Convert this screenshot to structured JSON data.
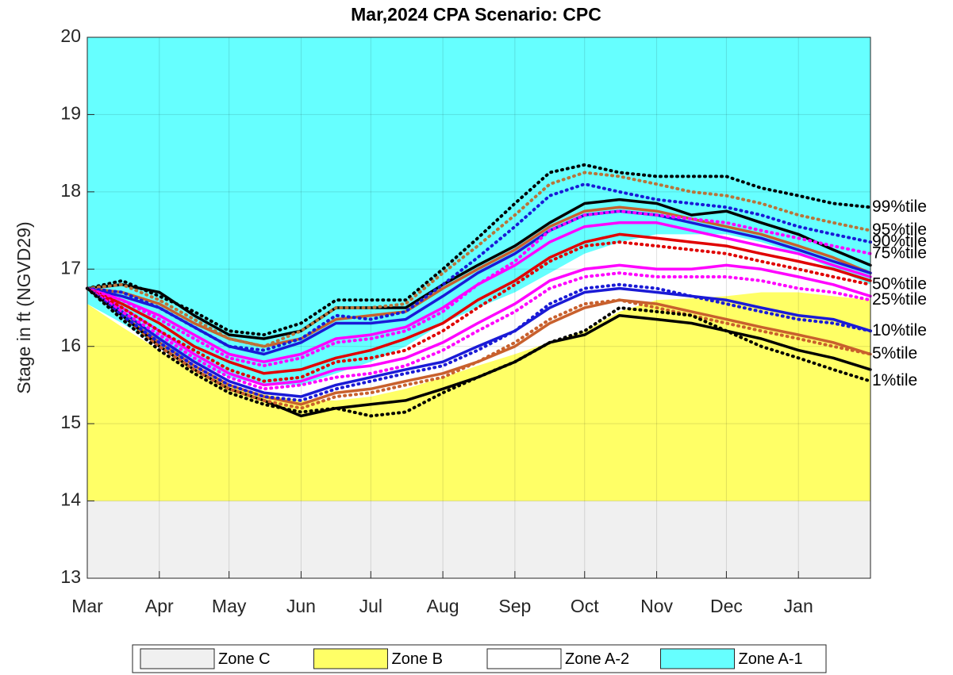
{
  "chart_data": {
    "type": "line",
    "title": "Mar,2024  CPA Scenario: CPC",
    "y_label": "Stage in ft (NGVD29)",
    "x": [
      0,
      15,
      31,
      46,
      61,
      76,
      92,
      107,
      122,
      137,
      153,
      168,
      184,
      199,
      214,
      229,
      245,
      260,
      275,
      290,
      306,
      321,
      337
    ],
    "xlim": [
      0,
      337
    ],
    "xticks": [
      {
        "value": 0,
        "label": "Mar"
      },
      {
        "value": 31,
        "label": "Apr"
      },
      {
        "value": 61,
        "label": "May"
      },
      {
        "value": 92,
        "label": "Jun"
      },
      {
        "value": 122,
        "label": "Jul"
      },
      {
        "value": 153,
        "label": "Aug"
      },
      {
        "value": 184,
        "label": "Sep"
      },
      {
        "value": 214,
        "label": "Oct"
      },
      {
        "value": 245,
        "label": "Nov"
      },
      {
        "value": 275,
        "label": "Dec"
      },
      {
        "value": 306,
        "label": "Jan"
      }
    ],
    "ylim": [
      13,
      20
    ],
    "yticks": [
      13,
      14,
      15,
      16,
      17,
      18,
      19,
      20
    ],
    "grid": true,
    "legend": "bottom",
    "zones": [
      {
        "name": "Zone C",
        "color": "#f0f0f0",
        "values": [
          14,
          14,
          14,
          14,
          14,
          14,
          14,
          14,
          14,
          14,
          14,
          14,
          14,
          14,
          14,
          14,
          14,
          14,
          14,
          14,
          14,
          14,
          14
        ]
      },
      {
        "name": "Zone B",
        "color": "#ffff66",
        "values": [
          16.55,
          16.25,
          15.95,
          15.7,
          15.5,
          15.38,
          15.3,
          15.3,
          15.35,
          15.45,
          15.6,
          15.75,
          15.9,
          16.05,
          16.2,
          16.45,
          16.6,
          16.62,
          16.65,
          16.7,
          16.7,
          16.65,
          16.6
        ]
      },
      {
        "name": "Zone A-2",
        "color": "#ffffff",
        "values": [
          16.55,
          16.3,
          16.0,
          15.8,
          15.6,
          15.5,
          15.5,
          15.65,
          15.8,
          16.0,
          16.3,
          16.5,
          16.7,
          16.95,
          17.2,
          17.35,
          17.45,
          17.45,
          17.45,
          17.35,
          17.2,
          17.0,
          16.8
        ]
      },
      {
        "name": "Zone A-1",
        "color": "#66ffff",
        "values": [
          20,
          20,
          20,
          20,
          20,
          20,
          20,
          20,
          20,
          20,
          20,
          20,
          20,
          20,
          20,
          20,
          20,
          20,
          20,
          20,
          20,
          20,
          20
        ]
      }
    ],
    "series": [
      {
        "color": "#000000",
        "style": "solid",
        "values": [
          16.75,
          16.8,
          16.7,
          16.4,
          16.15,
          16.1,
          16.2,
          16.5,
          16.5,
          16.5,
          16.8,
          17.05,
          17.3,
          17.6,
          17.85,
          17.9,
          17.85,
          17.7,
          17.75,
          17.6,
          17.45,
          17.25,
          17.05
        ]
      },
      {
        "color": "#c8602d",
        "style": "solid",
        "values": [
          16.75,
          16.7,
          16.55,
          16.3,
          16.1,
          16.0,
          16.1,
          16.35,
          16.4,
          16.45,
          16.75,
          17.0,
          17.25,
          17.55,
          17.75,
          17.8,
          17.75,
          17.65,
          17.55,
          17.45,
          17.3,
          17.15,
          16.95
        ]
      },
      {
        "color": "#1a1ad6",
        "style": "solid",
        "values": [
          16.75,
          16.65,
          16.5,
          16.25,
          16.0,
          15.9,
          16.05,
          16.3,
          16.3,
          16.35,
          16.65,
          16.95,
          17.2,
          17.5,
          17.7,
          17.75,
          17.7,
          17.6,
          17.5,
          17.4,
          17.25,
          17.1,
          16.95
        ]
      },
      {
        "color": "#ff00ff",
        "style": "solid",
        "values": [
          16.75,
          16.6,
          16.4,
          16.15,
          15.9,
          15.8,
          15.9,
          16.1,
          16.15,
          16.25,
          16.5,
          16.8,
          17.05,
          17.35,
          17.55,
          17.6,
          17.6,
          17.5,
          17.4,
          17.3,
          17.2,
          17.05,
          16.9
        ]
      },
      {
        "color": "#e00000",
        "style": "solid",
        "values": [
          16.75,
          16.55,
          16.3,
          16.0,
          15.8,
          15.65,
          15.7,
          15.85,
          15.95,
          16.1,
          16.3,
          16.6,
          16.85,
          17.15,
          17.35,
          17.45,
          17.4,
          17.35,
          17.3,
          17.2,
          17.1,
          17.0,
          16.85
        ]
      },
      {
        "color": "#ff00ff",
        "style": "solid",
        "values": [
          16.75,
          16.5,
          16.2,
          15.9,
          15.65,
          15.5,
          15.55,
          15.7,
          15.75,
          15.85,
          16.05,
          16.3,
          16.55,
          16.85,
          17.0,
          17.05,
          17.0,
          17.0,
          17.05,
          17.0,
          16.9,
          16.8,
          16.65
        ]
      },
      {
        "color": "#1a1ad6",
        "style": "solid",
        "values": [
          16.75,
          16.45,
          16.1,
          15.8,
          15.55,
          15.4,
          15.35,
          15.5,
          15.6,
          15.7,
          15.8,
          16.0,
          16.2,
          16.5,
          16.7,
          16.75,
          16.7,
          16.65,
          16.6,
          16.5,
          16.4,
          16.35,
          16.2
        ]
      },
      {
        "color": "#c8602d",
        "style": "solid",
        "values": [
          16.75,
          16.4,
          16.05,
          15.75,
          15.5,
          15.35,
          15.25,
          15.4,
          15.45,
          15.55,
          15.65,
          15.8,
          16.0,
          16.3,
          16.5,
          16.6,
          16.55,
          16.45,
          16.35,
          16.25,
          16.15,
          16.05,
          15.9
        ]
      },
      {
        "color": "#000000",
        "style": "solid",
        "values": [
          16.75,
          16.4,
          16.0,
          15.7,
          15.45,
          15.3,
          15.1,
          15.2,
          15.25,
          15.3,
          15.45,
          15.6,
          15.8,
          16.05,
          16.15,
          16.4,
          16.35,
          16.3,
          16.2,
          16.1,
          15.95,
          15.85,
          15.7
        ]
      },
      {
        "name": "99%tile",
        "color": "#000000",
        "style": "dotted",
        "values": [
          16.75,
          16.85,
          16.65,
          16.45,
          16.2,
          16.15,
          16.3,
          16.6,
          16.6,
          16.6,
          17.0,
          17.4,
          17.85,
          18.25,
          18.35,
          18.25,
          18.2,
          18.2,
          18.2,
          18.05,
          17.95,
          17.85,
          17.8
        ]
      },
      {
        "name": "95%tile",
        "color": "#b8743a",
        "style": "dotted",
        "values": [
          16.75,
          16.8,
          16.6,
          16.35,
          16.1,
          16.0,
          16.2,
          16.5,
          16.5,
          16.55,
          16.95,
          17.3,
          17.7,
          18.1,
          18.25,
          18.2,
          18.1,
          18.0,
          17.95,
          17.85,
          17.7,
          17.6,
          17.5
        ]
      },
      {
        "name": "90%tile",
        "color": "#1a1ad6",
        "style": "dotted",
        "values": [
          16.75,
          16.7,
          16.5,
          16.25,
          16.0,
          15.95,
          16.1,
          16.4,
          16.35,
          16.45,
          16.8,
          17.15,
          17.55,
          17.95,
          18.1,
          18.0,
          17.9,
          17.85,
          17.8,
          17.7,
          17.55,
          17.45,
          17.35
        ]
      },
      {
        "name": "75%tile",
        "color": "#ff00ff",
        "style": "dotted",
        "values": [
          16.75,
          16.6,
          16.35,
          16.1,
          15.85,
          15.75,
          15.85,
          16.05,
          16.1,
          16.2,
          16.45,
          16.8,
          17.1,
          17.5,
          17.7,
          17.75,
          17.7,
          17.65,
          17.6,
          17.5,
          17.4,
          17.3,
          17.2
        ]
      },
      {
        "name": "50%tile",
        "color": "#e00000",
        "style": "dotted",
        "values": [
          16.75,
          16.5,
          16.2,
          15.95,
          15.7,
          15.55,
          15.6,
          15.8,
          15.85,
          15.95,
          16.2,
          16.5,
          16.8,
          17.1,
          17.3,
          17.35,
          17.3,
          17.25,
          17.2,
          17.1,
          17.0,
          16.9,
          16.8
        ]
      },
      {
        "name": "25%tile",
        "color": "#ff00ff",
        "style": "dotted",
        "values": [
          16.75,
          16.45,
          16.15,
          15.85,
          15.6,
          15.45,
          15.5,
          15.6,
          15.65,
          15.75,
          15.95,
          16.2,
          16.45,
          16.75,
          16.9,
          16.95,
          16.9,
          16.9,
          16.9,
          16.85,
          16.75,
          16.7,
          16.6
        ]
      },
      {
        "name": "10%tile",
        "color": "#1a1ad6",
        "style": "dotted",
        "values": [
          16.75,
          16.4,
          16.05,
          15.75,
          15.5,
          15.35,
          15.3,
          15.45,
          15.55,
          15.65,
          15.75,
          15.95,
          16.2,
          16.55,
          16.75,
          16.8,
          16.75,
          16.65,
          16.55,
          16.45,
          16.35,
          16.3,
          16.2
        ]
      },
      {
        "name": "5%tile",
        "color": "#c8602d",
        "style": "dotted",
        "values": [
          16.75,
          16.35,
          16.0,
          15.7,
          15.45,
          15.3,
          15.2,
          15.35,
          15.4,
          15.5,
          15.6,
          15.8,
          16.05,
          16.35,
          16.55,
          16.6,
          16.5,
          16.4,
          16.3,
          16.2,
          16.1,
          16.0,
          15.9
        ]
      },
      {
        "name": "1%tile",
        "color": "#000000",
        "style": "dotted",
        "values": [
          16.75,
          16.35,
          15.95,
          15.65,
          15.4,
          15.25,
          15.15,
          15.2,
          15.1,
          15.15,
          15.4,
          15.6,
          15.8,
          16.05,
          16.2,
          16.5,
          16.45,
          16.4,
          16.2,
          16.0,
          15.85,
          15.7,
          15.55
        ]
      }
    ]
  }
}
